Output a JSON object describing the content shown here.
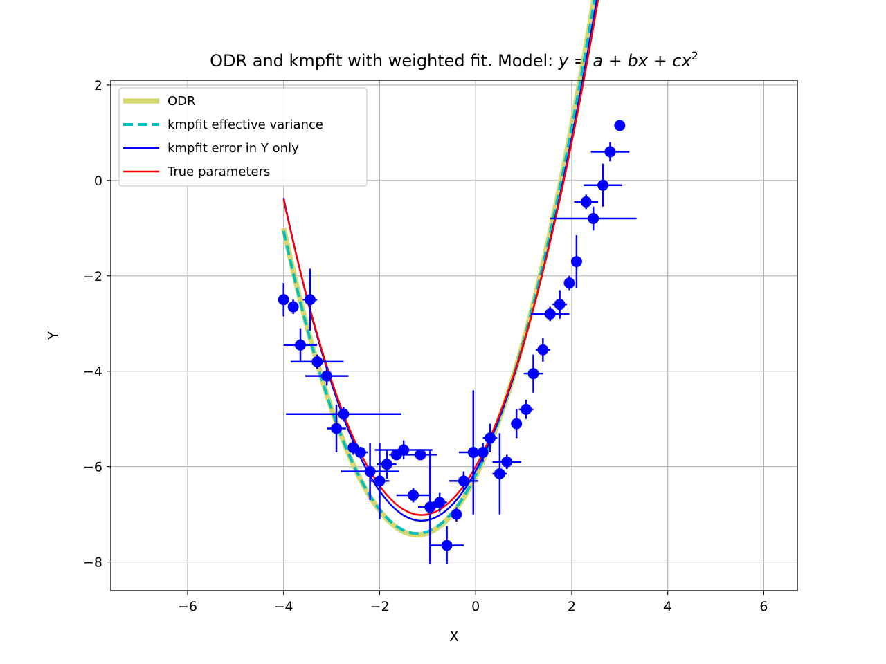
{
  "chart_data": {
    "type": "scatter",
    "title_main": "ODR and kmpfit with weighted fit. Model: ",
    "title_math": "y = a + bx + cx",
    "title_sup": "2",
    "xlabel": "X",
    "ylabel": "Y",
    "xlim": [
      -7.6,
      6.7
    ],
    "ylim": [
      -8.6,
      2.1
    ],
    "xticks": [
      -6,
      -4,
      -2,
      0,
      2,
      4,
      6
    ],
    "xtick_labels": [
      "−6",
      "−4",
      "−2",
      "0",
      "2",
      "4",
      "6"
    ],
    "yticks": [
      -8,
      -6,
      -4,
      -2,
      0,
      2
    ],
    "ytick_labels": [
      "−8",
      "−6",
      "−4",
      "−2",
      "0",
      "2"
    ],
    "grid": true,
    "legend_position": "upper-left",
    "fit_x_range": [
      -4.0,
      3.0
    ],
    "series": [
      {
        "name": "ODR",
        "kind": "line",
        "color": "#d4d461",
        "style": "solid",
        "params": {
          "a": -6.2,
          "b": 2.02,
          "c": 0.83
        }
      },
      {
        "name": "kmpfit effective variance",
        "kind": "line",
        "color": "#00bfbf",
        "style": "dashed",
        "params": {
          "a": -6.18,
          "b": 2.0,
          "c": 0.82
        }
      },
      {
        "name": "kmpfit error in Y only",
        "kind": "line",
        "color": "#0000ff",
        "style": "solid",
        "params": {
          "a": -6.09,
          "b": 1.85,
          "c": 0.82
        }
      },
      {
        "name": "True parameters",
        "kind": "line",
        "color": "#ff0000",
        "style": "solid",
        "params": {
          "a": -6.0,
          "b": 1.8,
          "c": 0.8
        }
      }
    ],
    "points": {
      "color": "#0000ff",
      "data": [
        {
          "x": -4.0,
          "y": -2.5,
          "ex": 0.1,
          "ey": 0.35
        },
        {
          "x": -3.8,
          "y": -2.65,
          "ex": 0.05,
          "ey": 0.15
        },
        {
          "x": -3.65,
          "y": -3.45,
          "ex": 0.35,
          "ey": 0.35
        },
        {
          "x": -3.45,
          "y": -2.5,
          "ex": 0.15,
          "ey": 0.65
        },
        {
          "x": -3.3,
          "y": -3.8,
          "ex": 0.55,
          "ey": 0.15
        },
        {
          "x": -3.1,
          "y": -4.1,
          "ex": 0.45,
          "ey": 0.2
        },
        {
          "x": -2.9,
          "y": -5.2,
          "ex": 0.2,
          "ey": 0.5
        },
        {
          "x": -2.75,
          "y": -4.9,
          "ex": 1.2,
          "ey": 0.15
        },
        {
          "x": -2.55,
          "y": -5.6,
          "ex": 0.1,
          "ey": 0.15
        },
        {
          "x": -2.4,
          "y": -5.7,
          "ex": 0.15,
          "ey": 0.1
        },
        {
          "x": -2.2,
          "y": -6.1,
          "ex": 0.6,
          "ey": 0.6
        },
        {
          "x": -2.0,
          "y": -6.3,
          "ex": 0.2,
          "ey": 0.8
        },
        {
          "x": -1.85,
          "y": -5.95,
          "ex": 0.2,
          "ey": 0.3
        },
        {
          "x": -1.65,
          "y": -5.75,
          "ex": 0.15,
          "ey": 0.1
        },
        {
          "x": -1.5,
          "y": -5.65,
          "ex": 0.6,
          "ey": 0.2
        },
        {
          "x": -1.3,
          "y": -6.6,
          "ex": 0.35,
          "ey": 0.15
        },
        {
          "x": -1.15,
          "y": -5.75,
          "ex": 0.35,
          "ey": 0.1
        },
        {
          "x": -0.95,
          "y": -6.85,
          "ex": 0.25,
          "ey": 1.2
        },
        {
          "x": -0.75,
          "y": -6.75,
          "ex": 0.15,
          "ey": 0.2
        },
        {
          "x": -0.6,
          "y": -7.65,
          "ex": 0.35,
          "ey": 0.4
        },
        {
          "x": -0.4,
          "y": -7.0,
          "ex": 0.1,
          "ey": 0.15
        },
        {
          "x": -0.25,
          "y": -6.3,
          "ex": 0.3,
          "ey": 0.2
        },
        {
          "x": -0.05,
          "y": -5.7,
          "ex": 0.3,
          "ey": 1.3
        },
        {
          "x": 0.15,
          "y": -5.7,
          "ex": 0.1,
          "ey": 0.2
        },
        {
          "x": 0.3,
          "y": -5.4,
          "ex": 0.15,
          "ey": 0.3
        },
        {
          "x": 0.5,
          "y": -6.15,
          "ex": 0.15,
          "ey": 0.85
        },
        {
          "x": 0.65,
          "y": -5.9,
          "ex": 0.3,
          "ey": 0.15
        },
        {
          "x": 0.85,
          "y": -5.1,
          "ex": 0.1,
          "ey": 0.3
        },
        {
          "x": 1.05,
          "y": -4.8,
          "ex": 0.15,
          "ey": 0.2
        },
        {
          "x": 1.2,
          "y": -4.05,
          "ex": 0.2,
          "ey": 0.4
        },
        {
          "x": 1.4,
          "y": -3.55,
          "ex": 0.15,
          "ey": 0.25
        },
        {
          "x": 1.55,
          "y": -2.8,
          "ex": 0.4,
          "ey": 0.15
        },
        {
          "x": 1.75,
          "y": -2.6,
          "ex": 0.15,
          "ey": 0.3
        },
        {
          "x": 1.95,
          "y": -2.15,
          "ex": 0.1,
          "ey": 0.15
        },
        {
          "x": 2.1,
          "y": -1.7,
          "ex": 0.05,
          "ey": 0.55
        },
        {
          "x": 2.3,
          "y": -0.45,
          "ex": 0.25,
          "ey": 0.15
        },
        {
          "x": 2.45,
          "y": -0.8,
          "ex": 0.9,
          "ey": 0.25
        },
        {
          "x": 2.65,
          "y": -0.1,
          "ex": 0.4,
          "ey": 0.45
        },
        {
          "x": 2.8,
          "y": 0.6,
          "ex": 0.4,
          "ey": 0.2
        },
        {
          "x": 3.0,
          "y": 1.15,
          "ex": 0.05,
          "ey": 0.1
        }
      ]
    }
  }
}
